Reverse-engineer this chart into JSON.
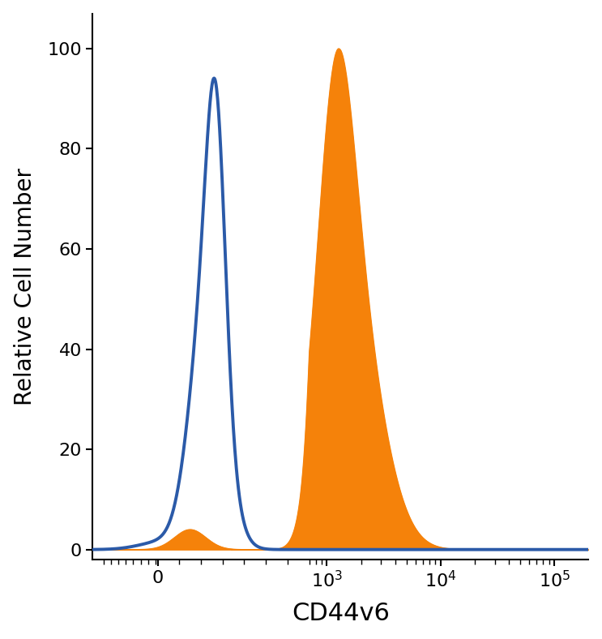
{
  "title": "",
  "xlabel": "CD44v6",
  "ylabel": "Relative Cell Number",
  "xlabel_fontsize": 22,
  "ylabel_fontsize": 20,
  "ylim": [
    -2,
    107
  ],
  "yticks": [
    0,
    20,
    40,
    60,
    80,
    100
  ],
  "blue_color": "#2B5AA8",
  "orange_color": "#F5820A",
  "blue_linewidth": 2.8,
  "background_color": "#ffffff",
  "figsize": [
    7.43,
    7.88
  ],
  "dpi": 100,
  "linthresh": 700,
  "linscale": 1.2
}
